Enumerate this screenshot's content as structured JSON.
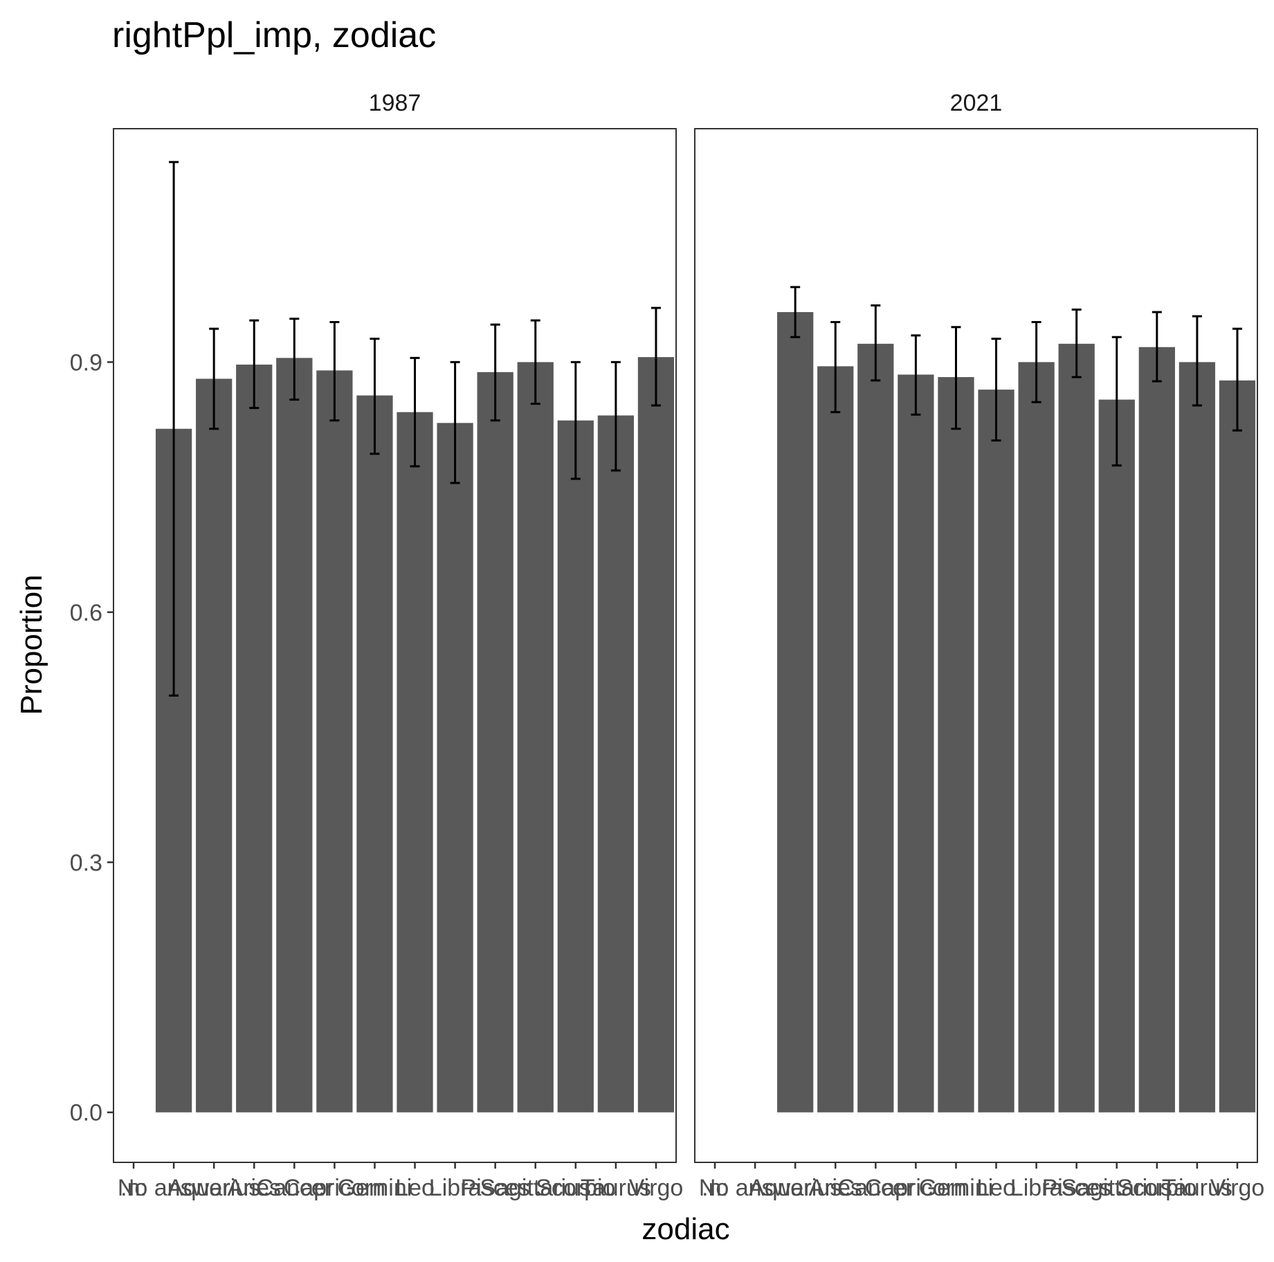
{
  "chart_data": {
    "type": "bar",
    "title": "rightPpl_imp, zodiac",
    "xlabel": "zodiac",
    "ylabel": "Proportion",
    "ylim": [
      -0.06,
      1.18
    ],
    "yticks": [
      "0.0",
      "0.3",
      "0.6",
      "0.9"
    ],
    "ytick_values": [
      0.0,
      0.3,
      0.6,
      0.9
    ],
    "categories": [
      ".n:",
      "No answer",
      "Aquarius",
      "Aries",
      "Cancer",
      "Capricorn",
      "Gemini",
      "Leo",
      "Libra",
      "Pisces",
      "Sagittarius",
      "Scorpio",
      "Taurus",
      "Virgo"
    ],
    "panels": [
      {
        "label": "1987",
        "bars": [
          {
            "category": "No answer",
            "value": 0.82,
            "lower": 0.5,
            "upper": 1.14
          },
          {
            "category": "Aquarius",
            "value": 0.88,
            "lower": 0.82,
            "upper": 0.94
          },
          {
            "category": "Aries",
            "value": 0.897,
            "lower": 0.845,
            "upper": 0.95
          },
          {
            "category": "Cancer",
            "value": 0.905,
            "lower": 0.855,
            "upper": 0.952
          },
          {
            "category": "Capricorn",
            "value": 0.89,
            "lower": 0.83,
            "upper": 0.948
          },
          {
            "category": "Gemini",
            "value": 0.86,
            "lower": 0.79,
            "upper": 0.928
          },
          {
            "category": "Leo",
            "value": 0.84,
            "lower": 0.775,
            "upper": 0.905
          },
          {
            "category": "Libra",
            "value": 0.827,
            "lower": 0.755,
            "upper": 0.9
          },
          {
            "category": "Pisces",
            "value": 0.888,
            "lower": 0.83,
            "upper": 0.945
          },
          {
            "category": "Sagittarius",
            "value": 0.9,
            "lower": 0.85,
            "upper": 0.95
          },
          {
            "category": "Scorpio",
            "value": 0.83,
            "lower": 0.76,
            "upper": 0.9
          },
          {
            "category": "Taurus",
            "value": 0.836,
            "lower": 0.77,
            "upper": 0.9
          },
          {
            "category": "Virgo",
            "value": 0.906,
            "lower": 0.848,
            "upper": 0.965
          }
        ]
      },
      {
        "label": "2021",
        "bars": [
          {
            "category": "Aquarius",
            "value": 0.96,
            "lower": 0.93,
            "upper": 0.99
          },
          {
            "category": "Aries",
            "value": 0.895,
            "lower": 0.84,
            "upper": 0.948
          },
          {
            "category": "Cancer",
            "value": 0.922,
            "lower": 0.878,
            "upper": 0.968
          },
          {
            "category": "Capricorn",
            "value": 0.885,
            "lower": 0.837,
            "upper": 0.932
          },
          {
            "category": "Gemini",
            "value": 0.882,
            "lower": 0.82,
            "upper": 0.942
          },
          {
            "category": "Leo",
            "value": 0.867,
            "lower": 0.806,
            "upper": 0.928
          },
          {
            "category": "Libra",
            "value": 0.9,
            "lower": 0.852,
            "upper": 0.948
          },
          {
            "category": "Pisces",
            "value": 0.922,
            "lower": 0.882,
            "upper": 0.963
          },
          {
            "category": "Sagittarius",
            "value": 0.855,
            "lower": 0.776,
            "upper": 0.93
          },
          {
            "category": "Scorpio",
            "value": 0.918,
            "lower": 0.877,
            "upper": 0.96
          },
          {
            "category": "Taurus",
            "value": 0.9,
            "lower": 0.848,
            "upper": 0.955
          },
          {
            "category": "Virgo",
            "value": 0.878,
            "lower": 0.818,
            "upper": 0.94
          }
        ]
      }
    ],
    "colors": {
      "bar": "#595959",
      "errorbar": "#000000",
      "panel_border": "#333333",
      "tick_text": "#4d4d4d"
    },
    "grid": false,
    "legend": "none"
  }
}
